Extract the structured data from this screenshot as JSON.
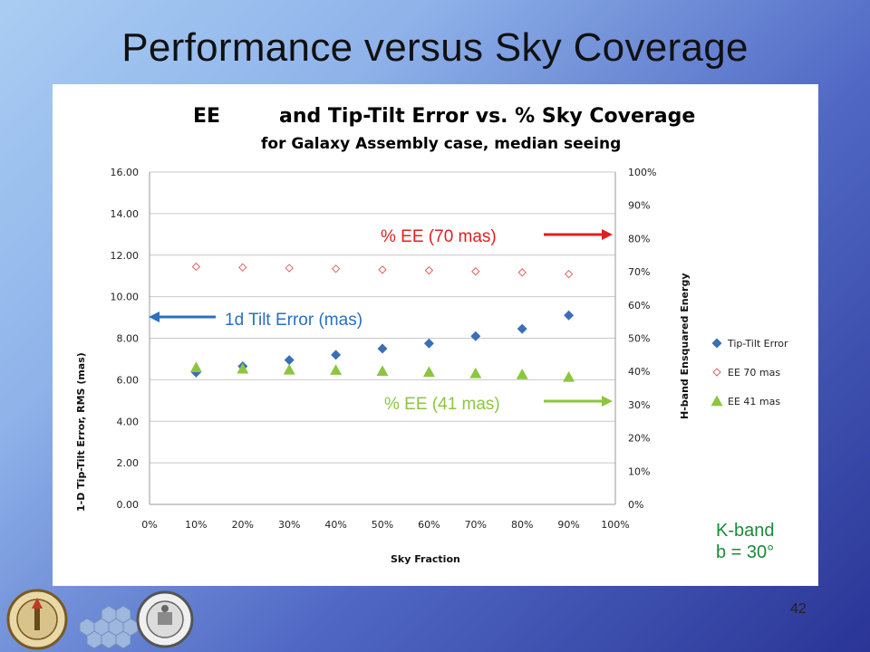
{
  "slide": {
    "title": "Performance versus Sky Coverage",
    "page_number": "42",
    "band_label": "K-band",
    "b_label": "b = 30°"
  },
  "annotations": {
    "ee70": "% EE (70 mas)",
    "tilt": "1d Tilt Error (mas)",
    "ee41": "% EE (41 mas)",
    "ee70_color": "#e02020",
    "tilt_color": "#2a6fc0",
    "ee41_color": "#8cc63f"
  },
  "chart_data": {
    "type": "scatter",
    "title_part1": "EE",
    "title_part2": "and Tip-Tilt Error vs. % Sky Coverage",
    "subtitle": "for Galaxy Assembly case, median seeing",
    "xlabel": "Sky Fraction",
    "ylabel": "1-D Tip-Tilt  Error, RMS (mas)",
    "y2label": "H-band Ensquared Energy",
    "x_ticks": [
      "0%",
      "10%",
      "20%",
      "30%",
      "40%",
      "50%",
      "60%",
      "70%",
      "80%",
      "90%",
      "100%"
    ],
    "y_ticks": [
      "0.00",
      "2.00",
      "4.00",
      "6.00",
      "8.00",
      "10.00",
      "12.00",
      "14.00",
      "16.00"
    ],
    "y2_ticks": [
      "0%",
      "10%",
      "20%",
      "30%",
      "40%",
      "50%",
      "60%",
      "70%",
      "80%",
      "90%",
      "100%"
    ],
    "xlim": [
      0,
      1
    ],
    "ylim": [
      0,
      16
    ],
    "y2lim": [
      0,
      1
    ],
    "grid": "horizontal",
    "legend_position": "right",
    "x": [
      0.1,
      0.2,
      0.3,
      0.4,
      0.5,
      0.6,
      0.7,
      0.8,
      0.9
    ],
    "series": [
      {
        "name": "Tip-Tilt Error",
        "axis": "left",
        "marker": "diamond",
        "color": "#3b6fb6",
        "values": [
          6.35,
          6.65,
          6.95,
          7.2,
          7.5,
          7.75,
          8.1,
          8.45,
          9.1
        ]
      },
      {
        "name": "EE 70 mas",
        "axis": "right",
        "marker": "open-diamond",
        "color": "#e06060",
        "values": [
          0.715,
          0.713,
          0.711,
          0.709,
          0.706,
          0.704,
          0.701,
          0.698,
          0.693
        ]
      },
      {
        "name": "EE 41 mas",
        "axis": "right",
        "marker": "triangle",
        "color": "#8cc63f",
        "values": [
          0.412,
          0.408,
          0.405,
          0.404,
          0.401,
          0.398,
          0.394,
          0.391,
          0.383
        ]
      }
    ]
  }
}
